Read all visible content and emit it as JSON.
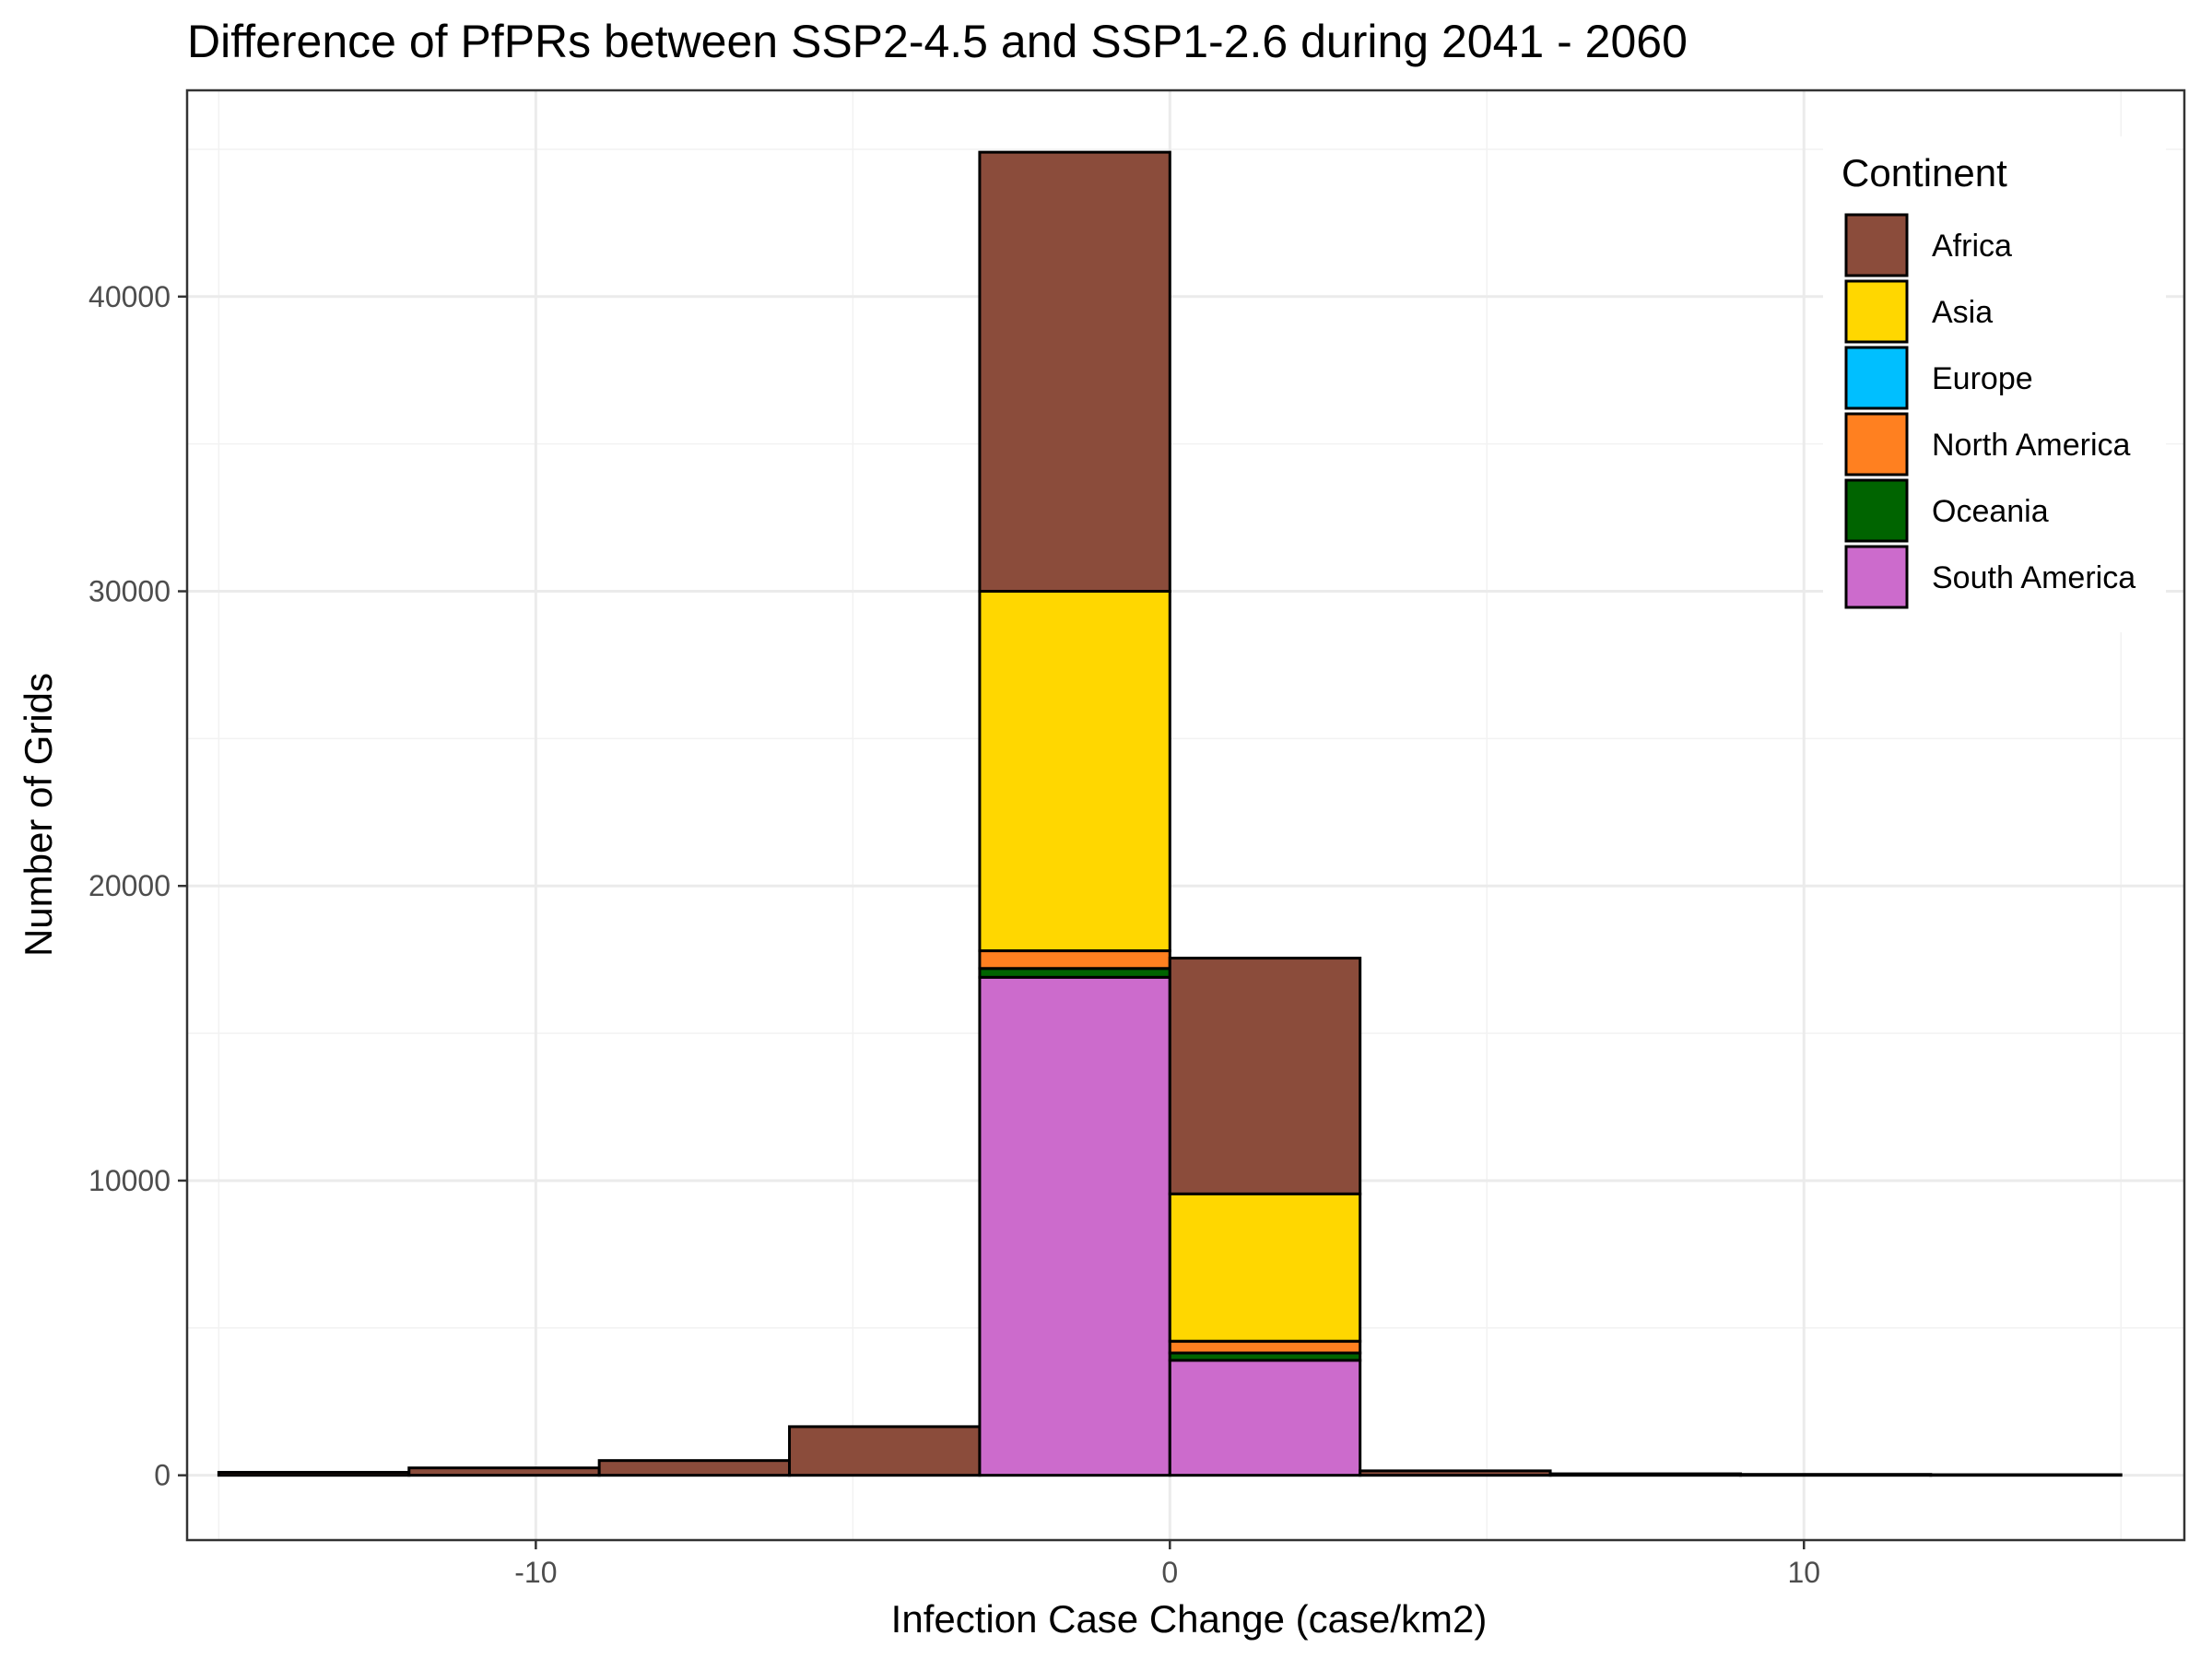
{
  "chart_data": {
    "type": "bar",
    "stacked": true,
    "histogram": true,
    "title": "Difference of PfPRs between SSP2-4.5 and SSP1-2.6 during 2041 - 2060",
    "xlabel": "Infection Case Change (case/km2)",
    "ylabel": "Number of Grids",
    "xlim": [
      -15.5,
      16
    ],
    "ylim": [
      -2200,
      47000
    ],
    "x_ticks": [
      -10,
      0,
      10
    ],
    "x_tick_labels": [
      "-10",
      "0",
      "10"
    ],
    "y_ticks": [
      0,
      10000,
      20000,
      30000,
      40000
    ],
    "y_tick_labels": [
      "0",
      "10000",
      "20000",
      "30000",
      "40000"
    ],
    "grid": true,
    "bin_edges": [
      -15,
      -12,
      -9,
      -6,
      -3,
      0,
      3,
      6,
      9,
      12,
      15
    ],
    "bin_width": 3,
    "categories": [
      "[-15,-12)",
      "[-12,-9)",
      "[-9,-6)",
      "[-6,-3)",
      "[-3,0)",
      "[0,3)",
      "[3,6)",
      "[6,9)",
      "[9,12)",
      "[12,15]"
    ],
    "series": [
      {
        "name": "South America",
        "color": "#cc6bcc",
        "values": [
          0,
          0,
          0,
          0,
          16900,
          3900,
          0,
          0,
          0,
          0
        ]
      },
      {
        "name": "Oceania",
        "color": "#006400",
        "values": [
          0,
          0,
          0,
          0,
          300,
          250,
          0,
          0,
          0,
          0
        ]
      },
      {
        "name": "North America",
        "color": "#ff8020",
        "values": [
          0,
          0,
          0,
          0,
          600,
          400,
          0,
          0,
          0,
          0
        ]
      },
      {
        "name": "Europe",
        "color": "#00bfff",
        "values": [
          0,
          0,
          0,
          0,
          0,
          0,
          0,
          0,
          0,
          0
        ]
      },
      {
        "name": "Asia",
        "color": "#ffd700",
        "values": [
          0,
          0,
          0,
          0,
          12200,
          5000,
          0,
          0,
          0,
          0
        ]
      },
      {
        "name": "Africa",
        "color": "#8b4c3b",
        "values": [
          100,
          250,
          500,
          1650,
          14900,
          8000,
          150,
          50,
          30,
          20
        ]
      }
    ],
    "legend": {
      "title": "Continent",
      "position": "top-right",
      "entries": [
        "Africa",
        "Asia",
        "Europe",
        "North America",
        "Oceania",
        "South America"
      ]
    }
  }
}
